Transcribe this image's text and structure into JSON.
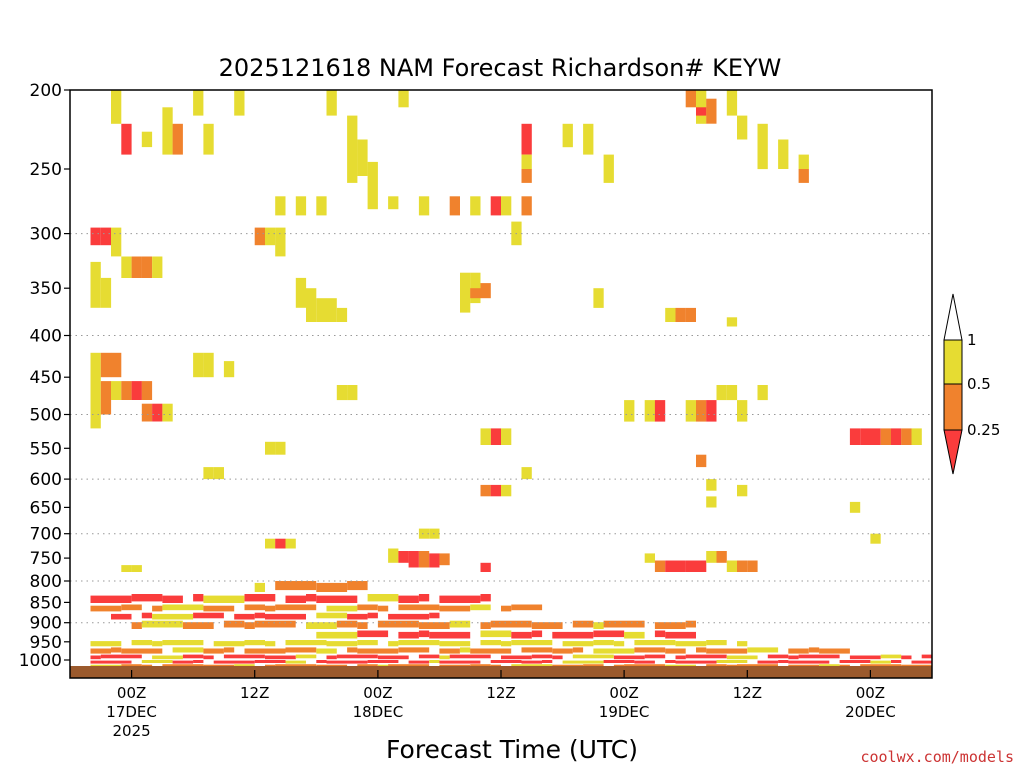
{
  "chart_data": {
    "type": "heatmap",
    "title": "2025121618 NAM Forecast Richardson# KEYW",
    "xlabel": "Forecast Time (UTC)",
    "ylabel": "",
    "credit": "coolwx.com/models",
    "y_scale": "log",
    "ylim": [
      200,
      1040
    ],
    "y_ticks": [
      200,
      250,
      300,
      350,
      400,
      450,
      500,
      550,
      600,
      650,
      700,
      750,
      800,
      850,
      900,
      950,
      1000
    ],
    "gridlines_at": [
      300,
      400,
      500,
      600,
      700,
      800,
      900
    ],
    "xlim": [
      -6,
      78
    ],
    "x_units": "forecast hour",
    "x_ticks": [
      {
        "hour": 0,
        "lines": [
          "00Z",
          "17DEC",
          "2025"
        ]
      },
      {
        "hour": 12,
        "lines": [
          "12Z"
        ]
      },
      {
        "hour": 24,
        "lines": [
          "00Z",
          "18DEC"
        ]
      },
      {
        "hour": 36,
        "lines": [
          "12Z"
        ]
      },
      {
        "hour": 48,
        "lines": [
          "00Z",
          "19DEC"
        ]
      },
      {
        "hour": 60,
        "lines": [
          "12Z"
        ]
      },
      {
        "hour": 72,
        "lines": [
          "00Z",
          "20DEC"
        ]
      }
    ],
    "colorbar": {
      "levels": [
        "1",
        "0.5",
        "0.25"
      ],
      "colors": {
        "white": "#ffffff",
        "yellow": "#e6dc32",
        "orange": "#f0822d",
        "red": "#fa3c3c"
      }
    },
    "ground_color": "#9b5a2d",
    "classes": {
      "1": "0.5-1",
      "2": "0.25-0.5",
      "3": "<0.25"
    },
    "cells": [
      [
        -2,
        200,
        220,
        1
      ],
      [
        -1,
        220,
        240,
        3
      ],
      [
        1,
        225,
        235,
        1
      ],
      [
        3,
        210,
        240,
        1
      ],
      [
        4,
        220,
        240,
        2
      ],
      [
        6,
        200,
        215,
        1
      ],
      [
        7,
        220,
        240,
        1
      ],
      [
        10,
        200,
        215,
        1
      ],
      [
        14,
        270,
        285,
        1
      ],
      [
        16,
        270,
        285,
        1
      ],
      [
        19,
        200,
        215,
        1
      ],
      [
        21,
        215,
        260,
        1
      ],
      [
        22,
        230,
        255,
        1
      ],
      [
        23,
        245,
        280,
        1
      ],
      [
        25,
        270,
        280,
        1
      ],
      [
        18,
        270,
        285,
        1
      ],
      [
        26,
        200,
        210,
        1
      ],
      [
        28,
        270,
        285,
        1
      ],
      [
        31,
        270,
        285,
        2
      ],
      [
        33,
        270,
        285,
        1
      ],
      [
        35,
        270,
        285,
        3
      ],
      [
        36,
        270,
        285,
        1
      ],
      [
        37,
        290,
        310,
        1
      ],
      [
        38,
        270,
        285,
        2
      ],
      [
        38,
        220,
        240,
        3
      ],
      [
        38,
        240,
        250,
        1
      ],
      [
        38,
        250,
        260,
        2
      ],
      [
        42,
        220,
        235,
        1
      ],
      [
        44,
        220,
        240,
        1
      ],
      [
        46,
        240,
        260,
        1
      ],
      [
        54,
        200,
        210,
        2
      ],
      [
        55,
        200,
        220,
        1
      ],
      [
        55,
        210,
        215,
        3
      ],
      [
        56,
        205,
        220,
        2
      ],
      [
        58,
        200,
        215,
        1
      ],
      [
        59,
        215,
        230,
        1
      ],
      [
        61,
        220,
        250,
        1
      ],
      [
        63,
        230,
        250,
        1
      ],
      [
        65,
        240,
        250,
        1
      ],
      [
        65,
        250,
        260,
        2
      ],
      [
        -4,
        295,
        310,
        3
      ],
      [
        -3,
        295,
        310,
        3
      ],
      [
        -2,
        295,
        320,
        1
      ],
      [
        -1,
        320,
        340,
        1
      ],
      [
        0,
        320,
        340,
        2
      ],
      [
        1,
        320,
        340,
        2
      ],
      [
        2,
        320,
        340,
        1
      ],
      [
        -4,
        325,
        370,
        1
      ],
      [
        -3,
        340,
        370,
        1
      ],
      [
        12,
        295,
        310,
        2
      ],
      [
        13,
        295,
        310,
        1
      ],
      [
        14,
        295,
        320,
        1
      ],
      [
        16,
        340,
        370,
        1
      ],
      [
        17,
        350,
        385,
        1
      ],
      [
        18,
        360,
        385,
        1
      ],
      [
        19,
        360,
        385,
        1
      ],
      [
        20,
        370,
        385,
        1
      ],
      [
        32,
        335,
        375,
        1
      ],
      [
        33,
        335,
        365,
        1
      ],
      [
        33,
        350,
        360,
        2
      ],
      [
        34,
        345,
        360,
        2
      ],
      [
        45,
        350,
        370,
        1
      ],
      [
        52,
        370,
        385,
        1
      ],
      [
        53,
        370,
        385,
        2
      ],
      [
        54,
        370,
        385,
        2
      ],
      [
        58,
        380,
        390,
        1
      ],
      [
        -4,
        420,
        520,
        1
      ],
      [
        -3,
        420,
        450,
        2
      ],
      [
        -2,
        420,
        450,
        2
      ],
      [
        -3,
        455,
        500,
        2
      ],
      [
        -2,
        455,
        480,
        1
      ],
      [
        -1,
        455,
        480,
        2
      ],
      [
        0,
        455,
        480,
        3
      ],
      [
        1,
        455,
        480,
        2
      ],
      [
        1,
        485,
        510,
        2
      ],
      [
        2,
        485,
        510,
        3
      ],
      [
        3,
        485,
        510,
        1
      ],
      [
        6,
        420,
        450,
        1
      ],
      [
        7,
        420,
        450,
        1
      ],
      [
        9,
        430,
        450,
        1
      ],
      [
        20,
        460,
        480,
        1
      ],
      [
        21,
        460,
        480,
        1
      ],
      [
        38,
        580,
        600,
        1
      ],
      [
        48,
        480,
        510,
        1
      ],
      [
        50,
        480,
        510,
        1
      ],
      [
        51,
        480,
        510,
        3
      ],
      [
        54,
        480,
        510,
        1
      ],
      [
        55,
        480,
        510,
        2
      ],
      [
        56,
        480,
        510,
        3
      ],
      [
        57,
        460,
        480,
        1
      ],
      [
        58,
        460,
        480,
        1
      ],
      [
        59,
        480,
        510,
        1
      ],
      [
        61,
        460,
        480,
        1
      ],
      [
        70,
        520,
        545,
        3
      ],
      [
        71,
        520,
        545,
        3
      ],
      [
        72,
        520,
        545,
        3
      ],
      [
        73,
        520,
        545,
        2
      ],
      [
        74,
        520,
        545,
        3
      ],
      [
        75,
        520,
        545,
        2
      ],
      [
        76,
        520,
        545,
        1
      ],
      [
        35,
        520,
        545,
        3
      ],
      [
        36,
        520,
        545,
        1
      ],
      [
        34,
        520,
        545,
        1
      ],
      [
        13,
        540,
        560,
        1
      ],
      [
        14,
        540,
        560,
        1
      ],
      [
        7,
        580,
        600,
        1
      ],
      [
        8,
        580,
        600,
        1
      ],
      [
        34,
        610,
        630,
        2
      ],
      [
        35,
        610,
        630,
        3
      ],
      [
        36,
        610,
        630,
        1
      ],
      [
        55,
        560,
        580,
        2
      ],
      [
        56,
        600,
        620,
        1
      ],
      [
        56,
        630,
        650,
        1
      ],
      [
        59,
        610,
        630,
        1
      ],
      [
        70,
        640,
        660,
        1
      ],
      [
        28,
        690,
        710,
        1
      ],
      [
        29,
        690,
        710,
        1
      ],
      [
        13,
        710,
        730,
        1
      ],
      [
        14,
        710,
        730,
        3
      ],
      [
        15,
        710,
        730,
        1
      ],
      [
        72,
        700,
        720,
        1
      ],
      [
        25,
        730,
        760,
        1
      ],
      [
        26,
        735,
        760,
        3
      ],
      [
        27,
        735,
        770,
        3
      ],
      [
        28,
        735,
        770,
        2
      ],
      [
        29,
        740,
        770,
        3
      ],
      [
        30,
        740,
        765,
        2
      ],
      [
        34,
        760,
        780,
        3
      ],
      [
        50,
        740,
        760,
        1
      ],
      [
        51,
        755,
        780,
        2
      ],
      [
        52,
        755,
        780,
        3
      ],
      [
        53,
        755,
        780,
        3
      ],
      [
        54,
        755,
        780,
        3
      ],
      [
        55,
        755,
        780,
        3
      ],
      [
        56,
        735,
        760,
        1
      ],
      [
        57,
        735,
        760,
        2
      ],
      [
        58,
        755,
        780,
        1
      ],
      [
        59,
        755,
        780,
        2
      ],
      [
        60,
        755,
        780,
        2
      ],
      [
        -1,
        765,
        780,
        1
      ],
      [
        0,
        765,
        780,
        1
      ]
    ],
    "surface_rows": [
      {
        "from": 800,
        "to": 830,
        "start": 12,
        "end": 23,
        "cls": 2
      },
      {
        "from": 830,
        "to": 855,
        "start": -4,
        "end": 35,
        "cls": 3
      },
      {
        "from": 855,
        "to": 875,
        "start": -4,
        "end": 40,
        "cls": 2
      },
      {
        "from": 875,
        "to": 895,
        "start": -2,
        "end": 30,
        "cls": 3
      },
      {
        "from": 895,
        "to": 920,
        "start": 0,
        "end": 55,
        "cls": 2
      },
      {
        "from": 920,
        "to": 945,
        "start": 18,
        "end": 55,
        "cls": 3
      },
      {
        "from": 945,
        "to": 965,
        "start": -4,
        "end": 60,
        "cls": 1
      },
      {
        "from": 965,
        "to": 985,
        "start": -4,
        "end": 70,
        "cls": 2
      },
      {
        "from": 985,
        "to": 1000,
        "start": -4,
        "end": 78,
        "cls": 3
      },
      {
        "from": 1000,
        "to": 1012,
        "start": -4,
        "end": 78,
        "cls": 3
      },
      {
        "from": 1012,
        "to": 1022,
        "start": -4,
        "end": 78,
        "cls": 2
      }
    ]
  }
}
